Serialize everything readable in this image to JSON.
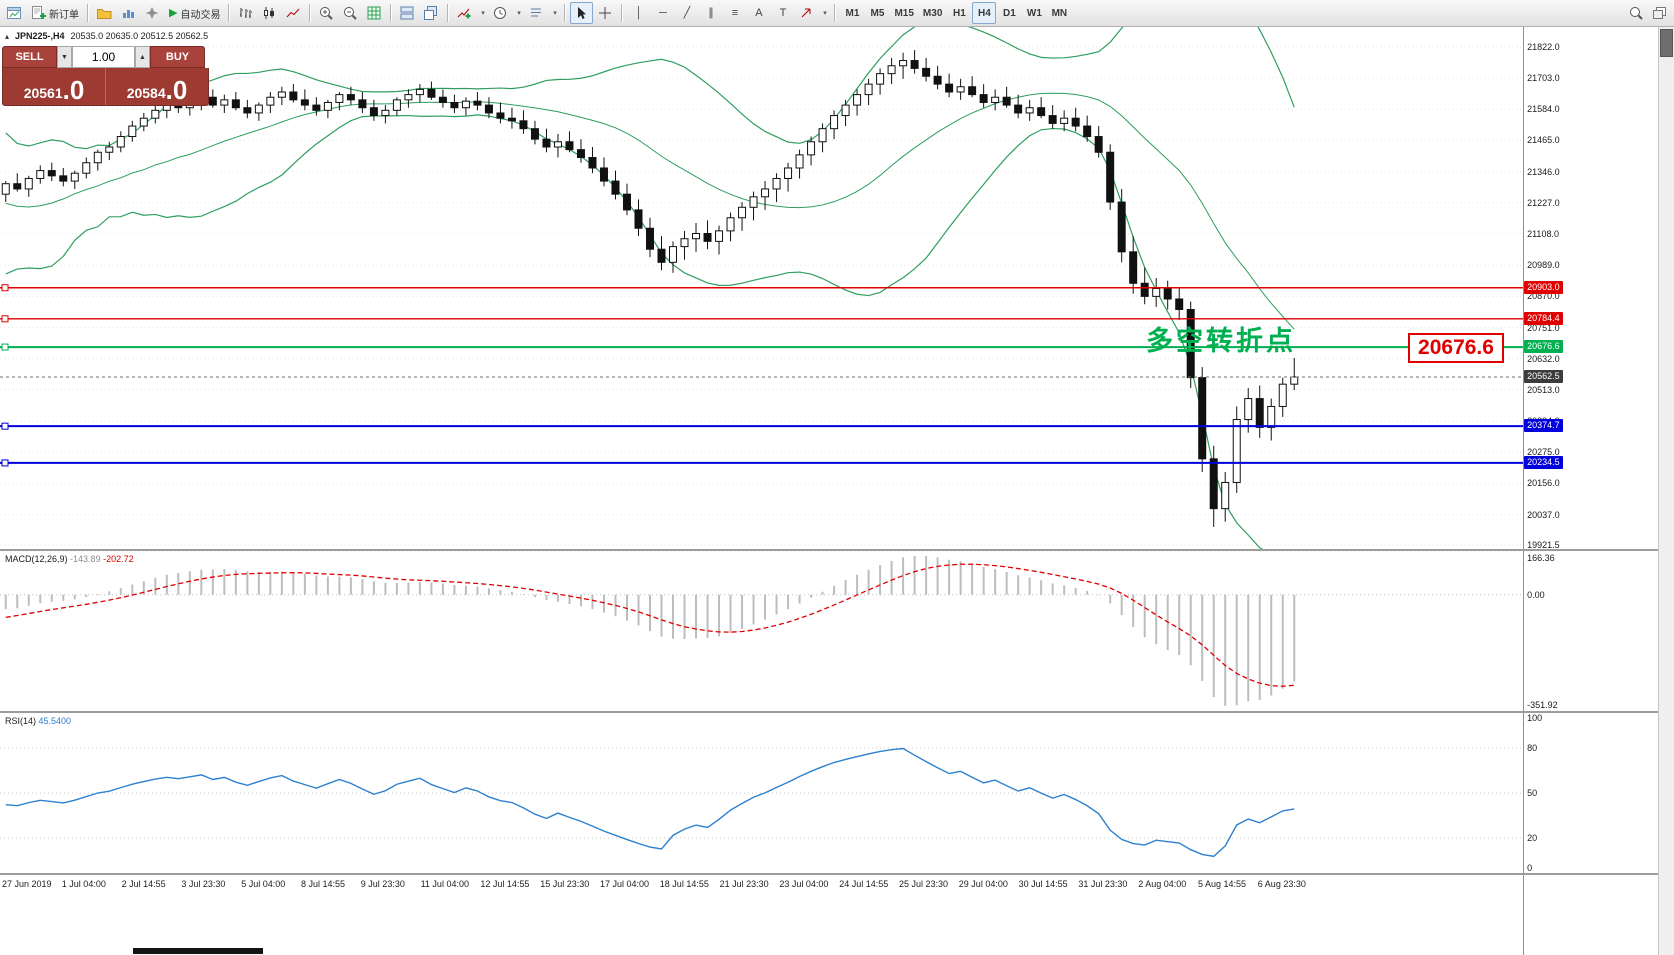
{
  "toolbar": {
    "new_order": "新订单",
    "autotrade": "自动交易",
    "text_tool": "A",
    "label_tool": "T",
    "timeframes": [
      "M1",
      "M5",
      "M15",
      "M30",
      "H1",
      "H4",
      "D1",
      "W1",
      "MN"
    ],
    "active_timeframe": "H4"
  },
  "chart": {
    "symbol": "JPN225-,H4",
    "ohlc": "20535.0 20635.0 20512.5 20562.5",
    "annotation": "多空转折点",
    "callout": "20676.6"
  },
  "trade": {
    "sell_label": "SELL",
    "buy_label": "BUY",
    "volume": "1.00",
    "sell_price": "20561",
    "sell_price_frac": ".0",
    "buy_price": "20584",
    "buy_price_frac": ".0"
  },
  "price_axis": {
    "ticks": [
      "21822.0",
      "21703.0",
      "21584.0",
      "21465.0",
      "21346.0",
      "21227.0",
      "21108.0",
      "20989.0",
      "20870.0",
      "20751.0",
      "20632.0",
      "20513.0",
      "20394.0",
      "20275.0",
      "20156.0",
      "20037.0",
      "19921.5"
    ],
    "bid_label": "20562.5",
    "bid_badge_color": "#3c3c3c"
  },
  "levels": [
    {
      "label": "20903.0",
      "price": 20903.0,
      "color": "#e00000",
      "width": 1.4
    },
    {
      "label": "20784.4",
      "price": 20784.4,
      "color": "#e00000",
      "width": 1.4
    },
    {
      "label": "20676.6",
      "price": 20676.6,
      "color": "#00b050",
      "width": 2
    },
    {
      "label": "20374.7",
      "price": 20374.7,
      "color": "#0000dd",
      "width": 2
    },
    {
      "label": "20234.5",
      "price": 20234.5,
      "color": "#0000dd",
      "width": 2
    }
  ],
  "macd": {
    "name": "MACD(12,26,9)",
    "value_main": "-143.89",
    "value_signal": "-202.72",
    "axis": [
      "166.36",
      "0.00",
      "-351.92"
    ]
  },
  "rsi": {
    "name": "RSI(14)",
    "value": "45.5400",
    "axis": [
      "100",
      "80",
      "50",
      "20",
      "0"
    ],
    "levels": [
      80,
      50,
      20
    ]
  },
  "chart_data": {
    "type": "candlestick",
    "symbol": "JPN225-",
    "timeframe": "H4",
    "ohlc": {
      "open": "20535.0",
      "high": "20635.0",
      "low": "20512.5",
      "close": "20562.5"
    },
    "bid": 20562.5,
    "price_range": [
      19906,
      21898
    ],
    "indicators": {
      "bollinger": "Bollinger Bands (20,2)",
      "macd": "MACD(12,26,9)",
      "rsi": "RSI(14)"
    },
    "history_closes": [
      21600,
      21500,
      21380,
      21250,
      21120,
      21000,
      20950,
      21050,
      21150,
      21080,
      21220,
      21150,
      21300,
      21220,
      21350,
      21260,
      21380,
      21300,
      21260,
      21280
    ],
    "candles": [
      [
        21260,
        21310,
        21230,
        21300
      ],
      [
        21300,
        21340,
        21270,
        21280
      ],
      [
        21280,
        21330,
        21250,
        21320
      ],
      [
        21320,
        21370,
        21300,
        21350
      ],
      [
        21350,
        21380,
        21310,
        21330
      ],
      [
        21330,
        21360,
        21290,
        21310
      ],
      [
        21310,
        21350,
        21280,
        21340
      ],
      [
        21340,
        21400,
        21320,
        21380
      ],
      [
        21380,
        21430,
        21350,
        21420
      ],
      [
        21420,
        21460,
        21390,
        21440
      ],
      [
        21440,
        21500,
        21420,
        21480
      ],
      [
        21480,
        21540,
        21460,
        21520
      ],
      [
        21520,
        21570,
        21500,
        21550
      ],
      [
        21550,
        21600,
        21530,
        21580
      ],
      [
        21580,
        21620,
        21550,
        21600
      ],
      [
        21600,
        21640,
        21570,
        21590
      ],
      [
        21590,
        21630,
        21560,
        21610
      ],
      [
        21610,
        21650,
        21580,
        21630
      ],
      [
        21630,
        21660,
        21590,
        21600
      ],
      [
        21600,
        21640,
        21570,
        21620
      ],
      [
        21620,
        21650,
        21580,
        21590
      ],
      [
        21590,
        21620,
        21550,
        21570
      ],
      [
        21570,
        21610,
        21540,
        21600
      ],
      [
        21600,
        21650,
        21570,
        21630
      ],
      [
        21630,
        21670,
        21600,
        21650
      ],
      [
        21650,
        21680,
        21610,
        21620
      ],
      [
        21620,
        21660,
        21580,
        21600
      ],
      [
        21600,
        21630,
        21560,
        21580
      ],
      [
        21580,
        21620,
        21550,
        21610
      ],
      [
        21610,
        21650,
        21580,
        21640
      ],
      [
        21640,
        21670,
        21600,
        21620
      ],
      [
        21620,
        21650,
        21570,
        21590
      ],
      [
        21590,
        21620,
        21540,
        21560
      ],
      [
        21560,
        21600,
        21530,
        21580
      ],
      [
        21580,
        21630,
        21560,
        21620
      ],
      [
        21620,
        21660,
        21590,
        21640
      ],
      [
        21640,
        21680,
        21610,
        21660
      ],
      [
        21660,
        21690,
        21620,
        21630
      ],
      [
        21630,
        21660,
        21590,
        21610
      ],
      [
        21610,
        21640,
        21570,
        21590
      ],
      [
        21590,
        21630,
        21560,
        21615
      ],
      [
        21615,
        21650,
        21580,
        21600
      ],
      [
        21600,
        21630,
        21550,
        21570
      ],
      [
        21570,
        21610,
        21530,
        21550
      ],
      [
        21550,
        21590,
        21510,
        21540
      ],
      [
        21540,
        21580,
        21490,
        21510
      ],
      [
        21510,
        21540,
        21450,
        21470
      ],
      [
        21470,
        21510,
        21420,
        21440
      ],
      [
        21440,
        21490,
        21400,
        21460
      ],
      [
        21460,
        21500,
        21420,
        21430
      ],
      [
        21430,
        21470,
        21380,
        21400
      ],
      [
        21400,
        21440,
        21340,
        21360
      ],
      [
        21360,
        21400,
        21290,
        21310
      ],
      [
        21310,
        21350,
        21240,
        21260
      ],
      [
        21260,
        21300,
        21180,
        21200
      ],
      [
        21200,
        21240,
        21100,
        21130
      ],
      [
        21130,
        21170,
        21020,
        21050
      ],
      [
        21050,
        21100,
        20970,
        21000
      ],
      [
        21000,
        21080,
        20960,
        21060
      ],
      [
        21060,
        21120,
        21010,
        21090
      ],
      [
        21090,
        21150,
        21040,
        21110
      ],
      [
        21110,
        21160,
        21050,
        21080
      ],
      [
        21080,
        21140,
        21030,
        21120
      ],
      [
        21120,
        21190,
        21080,
        21170
      ],
      [
        21170,
        21230,
        21120,
        21210
      ],
      [
        21210,
        21270,
        21160,
        21250
      ],
      [
        21250,
        21310,
        21200,
        21280
      ],
      [
        21280,
        21340,
        21230,
        21320
      ],
      [
        21320,
        21380,
        21270,
        21360
      ],
      [
        21360,
        21430,
        21320,
        21410
      ],
      [
        21410,
        21480,
        21370,
        21460
      ],
      [
        21460,
        21530,
        21420,
        21510
      ],
      [
        21510,
        21580,
        21470,
        21560
      ],
      [
        21560,
        21620,
        21520,
        21600
      ],
      [
        21600,
        21660,
        21560,
        21640
      ],
      [
        21640,
        21700,
        21600,
        21680
      ],
      [
        21680,
        21740,
        21640,
        21720
      ],
      [
        21720,
        21780,
        21680,
        21750
      ],
      [
        21750,
        21800,
        21700,
        21770
      ],
      [
        21770,
        21810,
        21720,
        21740
      ],
      [
        21740,
        21780,
        21690,
        21710
      ],
      [
        21710,
        21750,
        21660,
        21680
      ],
      [
        21680,
        21720,
        21630,
        21650
      ],
      [
        21650,
        21700,
        21620,
        21670
      ],
      [
        21670,
        21710,
        21630,
        21640
      ],
      [
        21640,
        21680,
        21590,
        21610
      ],
      [
        21610,
        21660,
        21580,
        21630
      ],
      [
        21630,
        21670,
        21590,
        21600
      ],
      [
        21600,
        21640,
        21550,
        21570
      ],
      [
        21570,
        21620,
        21540,
        21590
      ],
      [
        21590,
        21630,
        21550,
        21560
      ],
      [
        21560,
        21600,
        21510,
        21530
      ],
      [
        21530,
        21580,
        21500,
        21550
      ],
      [
        21550,
        21590,
        21500,
        21520
      ],
      [
        21520,
        21560,
        21460,
        21480
      ],
      [
        21480,
        21520,
        21400,
        21420
      ],
      [
        21420,
        21450,
        21200,
        21230
      ],
      [
        21230,
        21280,
        21000,
        21040
      ],
      [
        21040,
        21100,
        20880,
        20920
      ],
      [
        20920,
        20980,
        20840,
        20870
      ],
      [
        20870,
        20940,
        20830,
        20900
      ],
      [
        20900,
        20930,
        20820,
        20860
      ],
      [
        20860,
        20900,
        20780,
        20820
      ],
      [
        20820,
        20850,
        20520,
        20560
      ],
      [
        20560,
        20600,
        20200,
        20250
      ],
      [
        20250,
        20300,
        19990,
        20060
      ],
      [
        20060,
        20200,
        20010,
        20160
      ],
      [
        20160,
        20450,
        20120,
        20400
      ],
      [
        20400,
        20520,
        20350,
        20480
      ],
      [
        20480,
        20530,
        20330,
        20370
      ],
      [
        20370,
        20480,
        20320,
        20450
      ],
      [
        20450,
        20560,
        20410,
        20535
      ],
      [
        20535,
        20635,
        20512.5,
        20562.5
      ]
    ],
    "time_labels": [
      "27 Jun 2019",
      "1 Jul 04:00",
      "2 Jul 14:55",
      "3 Jul 23:30",
      "5 Jul 04:00",
      "8 Jul 14:55",
      "9 Jul 23:30",
      "11 Jul 04:00",
      "12 Jul 14:55",
      "15 Jul 23:30",
      "17 Jul 04:00",
      "18 Jul 14:55",
      "21 Jul 23:30",
      "23 Jul 04:00",
      "24 Jul 14:55",
      "25 Jul 23:30",
      "29 Jul 04:00",
      "30 Jul 14:55",
      "31 Jul 23:30",
      "2 Aug 04:00",
      "5 Aug 14:55",
      "6 Aug 23:30"
    ]
  }
}
